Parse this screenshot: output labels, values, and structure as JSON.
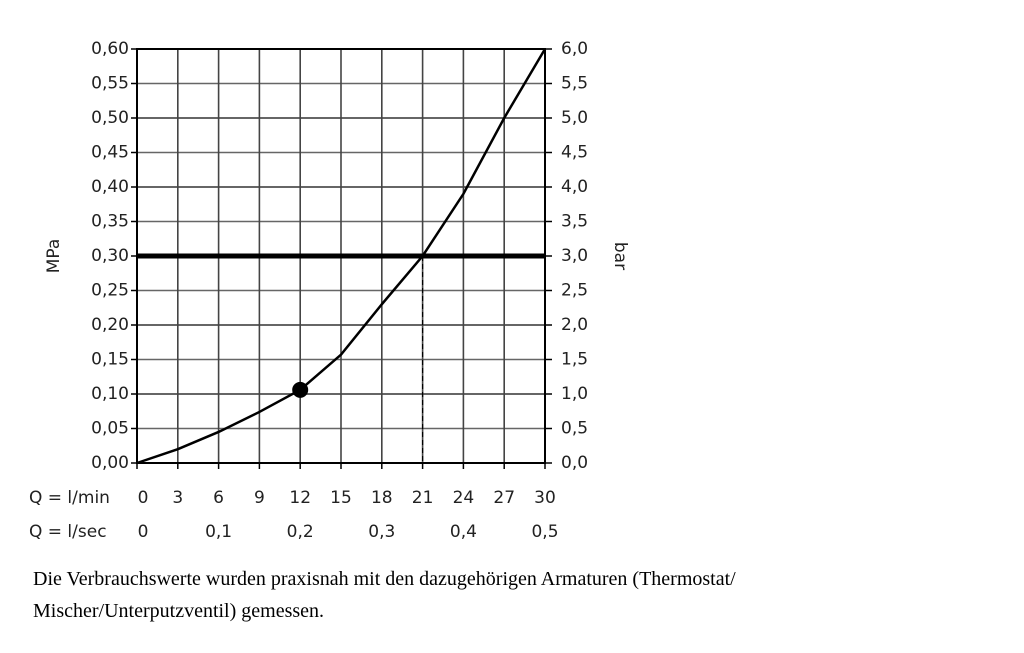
{
  "chart_data": {
    "type": "line",
    "xlabel": "Q = l/min",
    "x2label": "Q = l/sec",
    "ylabel": "MPa",
    "y2label": "bar",
    "x": [
      0,
      3,
      6,
      9,
      12,
      15,
      18,
      21,
      24,
      27,
      30
    ],
    "series": [
      {
        "color": "#000000",
        "values": [
          0,
          0.02,
          0.045,
          0.074,
          0.106,
          0.157,
          0.23,
          0.3,
          0.39,
          0.5,
          0.6
        ]
      }
    ],
    "xlim": [
      0,
      30
    ],
    "xticks": [
      0,
      3,
      6,
      9,
      12,
      15,
      18,
      21,
      24,
      27,
      30
    ],
    "x2lim": [
      0,
      0.5
    ],
    "x2ticks": [
      0,
      {
        "value": 0.1,
        "label": "0,1"
      },
      {
        "value": 0.2,
        "label": "0,2"
      },
      {
        "value": 0.3,
        "label": "0,3"
      },
      {
        "value": 0.4,
        "label": "0,4"
      },
      {
        "value": 0.5,
        "label": "0,5"
      }
    ],
    "ylim": [
      0,
      0.6
    ],
    "yticks": [
      {
        "value": 0,
        "label": "0,00"
      },
      {
        "value": 0.05,
        "label": "0,05"
      },
      {
        "value": 0.1,
        "label": "0,10"
      },
      {
        "value": 0.15,
        "label": "0,15"
      },
      {
        "value": 0.2,
        "label": "0,20"
      },
      {
        "value": 0.25,
        "label": "0,25"
      },
      {
        "value": 0.3,
        "label": "0,30"
      },
      {
        "value": 0.35,
        "label": "0,35"
      },
      {
        "value": 0.4,
        "label": "0,40"
      },
      {
        "value": 0.45,
        "label": "0,45"
      },
      {
        "value": 0.5,
        "label": "0,50"
      },
      {
        "value": 0.55,
        "label": "0,55"
      },
      {
        "value": 0.6,
        "label": "0,60"
      }
    ],
    "y2lim": [
      0,
      6
    ],
    "y2ticks": [
      {
        "value": 0,
        "label": "0,0"
      },
      {
        "value": 0.5,
        "label": "0,5"
      },
      {
        "value": 1,
        "label": "1,0"
      },
      {
        "value": 1.5,
        "label": "1,5"
      },
      {
        "value": 2,
        "label": "2,0"
      },
      {
        "value": 2.5,
        "label": "2,5"
      },
      {
        "value": 3,
        "label": "3,0"
      },
      {
        "value": 3.5,
        "label": "3,5"
      },
      {
        "value": 4,
        "label": "4,0"
      },
      {
        "value": 4.5,
        "label": "4,5"
      },
      {
        "value": 5,
        "label": "5,0"
      },
      {
        "value": 5.5,
        "label": "5,5"
      },
      {
        "value": 6,
        "label": "6,0"
      }
    ],
    "grid": true,
    "reference_line": {
      "y": 0.3
    },
    "operating_point": {
      "x": 21,
      "y": 0.3
    },
    "marker": {
      "x": 12,
      "y": 0.106
    }
  },
  "caption": [
    "Die Verbrauchswerte wurden praxisnah mit den dazugehörigen Armaturen (Thermostat/",
    "Mischer/Unterputzventil) gemessen."
  ]
}
